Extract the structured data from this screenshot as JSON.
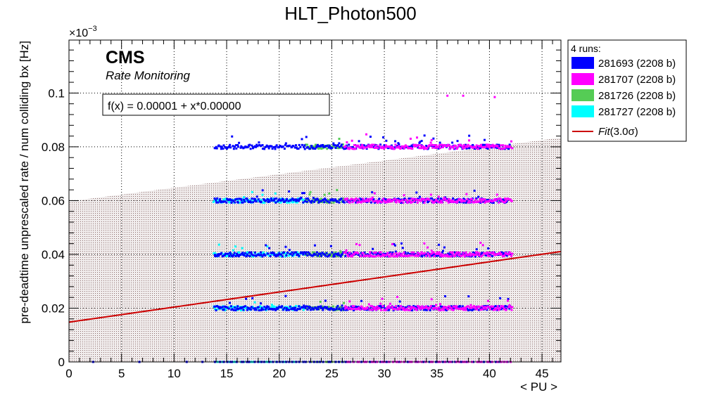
{
  "chart_data": {
    "type": "scatter",
    "title": "HLT_Photon500",
    "xlabel": "< PU >",
    "ylabel": "pre-deadtime unprescaled rate / num colliding bx [Hz]",
    "y_multiplier": "×10",
    "y_multiplier_exp": "−3",
    "xlim": [
      0,
      46.8
    ],
    "ylim": [
      0,
      0.1197
    ],
    "x_ticks": [
      "0",
      "5",
      "10",
      "15",
      "20",
      "25",
      "30",
      "35",
      "40",
      "45"
    ],
    "y_ticks": [
      "0",
      "0.02",
      "0.04",
      "0.06",
      "0.08",
      "0.1"
    ],
    "grid": true,
    "cms_label": "CMS",
    "cms_sublabel": "Rate Monitoring",
    "fit_formula": "f(x) = 0.00001 + x*0.00000",
    "fit_line": {
      "intercept": 0.0148,
      "slope": 0.000561,
      "color": "#cc0000"
    },
    "fit_band": {
      "upper_intercept": 0.0597,
      "upper_slope": 0.000507,
      "color": "#b09a9a"
    },
    "legend": {
      "header": "4 runs:",
      "fit_prefix": "Fit",
      "fit_suffix": "(3.0σ)",
      "placement": "outside-right"
    },
    "series": [
      {
        "name": "281693 (2208 b)",
        "color": "#0000ff",
        "x_range": [
          13.8,
          42.0
        ],
        "levels": [
          0.0,
          0.02,
          0.04,
          0.06,
          0.08
        ]
      },
      {
        "name": "281707 (2208 b)",
        "color": "#ff00ff",
        "x_range": [
          26.2,
          42.2
        ],
        "levels": [
          0.0,
          0.02,
          0.04,
          0.06,
          0.08
        ]
      },
      {
        "name": "281726 (2208 b)",
        "color": "#55cc55",
        "x_range": [
          22.5,
          26.2
        ],
        "levels": [
          0.0,
          0.02,
          0.04,
          0.06,
          0.08
        ]
      },
      {
        "name": "281727 (2208 b)",
        "color": "#00ffff",
        "x_range": [
          13.7,
          22.5
        ],
        "levels": [
          0.0,
          0.02,
          0.04,
          0.06
        ]
      }
    ],
    "outliers": [
      {
        "series": 1,
        "x": 36.0,
        "y": 0.099
      },
      {
        "series": 1,
        "x": 37.5,
        "y": 0.099
      },
      {
        "series": 1,
        "x": 40.5,
        "y": 0.0985
      },
      {
        "series": 1,
        "x": 32.5,
        "y": 0.083
      },
      {
        "series": 1,
        "x": 34.5,
        "y": 0.0825
      },
      {
        "series": 0,
        "x": 2.3,
        "y": 0.0
      },
      {
        "series": 0,
        "x": 6.7,
        "y": 0.0
      },
      {
        "series": 0,
        "x": 11.2,
        "y": 0.0
      },
      {
        "series": 0,
        "x": 12.7,
        "y": 0.0
      }
    ]
  }
}
